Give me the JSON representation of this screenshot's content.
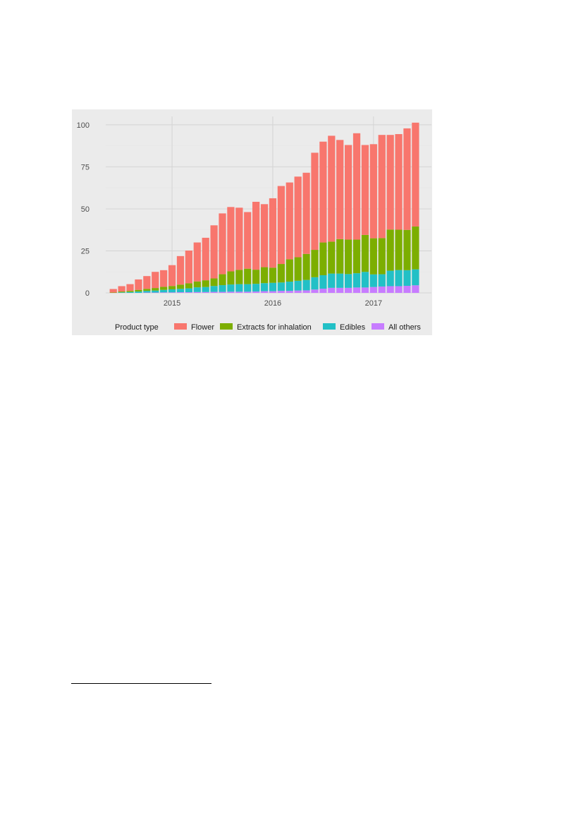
{
  "chart_data": {
    "type": "bar",
    "stacked": true,
    "title": "",
    "xlabel": "",
    "ylabel": "",
    "ylim": [
      0,
      105
    ],
    "y_ticks": [
      0,
      25,
      50,
      75,
      100
    ],
    "x_ticks": [
      {
        "label": "2015",
        "at_month": 7
      },
      {
        "label": "2016",
        "at_month": 19
      },
      {
        "label": "2017",
        "at_month": 31
      }
    ],
    "x_range_months": [
      -0.9,
      37.9
    ],
    "grid": true,
    "legend": {
      "title": "Product type",
      "position": "bottom",
      "entries": [
        "Flower",
        "Extracts for inhalation",
        "Edibles",
        "All others"
      ]
    },
    "categories": [
      "2014-07",
      "2014-08",
      "2014-09",
      "2014-10",
      "2014-11",
      "2014-12",
      "2015-01",
      "2015-02",
      "2015-03",
      "2015-04",
      "2015-05",
      "2015-06",
      "2015-07",
      "2015-08",
      "2015-09",
      "2015-10",
      "2015-11",
      "2015-12",
      "2016-01",
      "2016-02",
      "2016-03",
      "2016-04",
      "2016-05",
      "2016-06",
      "2016-07",
      "2016-08",
      "2016-09",
      "2016-10",
      "2016-11",
      "2016-12",
      "2017-01",
      "2017-02",
      "2017-03",
      "2017-04",
      "2017-05",
      "2017-06",
      "2017-07"
    ],
    "series": [
      {
        "name": "All others",
        "color": "#c77cff",
        "values": [
          0,
          0,
          0,
          0,
          0.2,
          0.2,
          0.3,
          0.3,
          0.4,
          0.4,
          0.5,
          0.5,
          0.6,
          0.6,
          0.7,
          0.7,
          0.7,
          0.8,
          1,
          1,
          1.2,
          1.2,
          1.4,
          1.5,
          2,
          2.5,
          3,
          3,
          3,
          3.2,
          3.2,
          3.5,
          3.8,
          4,
          4,
          4.2,
          4.5
        ]
      },
      {
        "name": "Edibles",
        "color": "#22c0c6",
        "values": [
          0,
          0.3,
          0.5,
          0.8,
          1,
          1.2,
          1.5,
          1.8,
          2,
          2.3,
          2.8,
          3,
          3.5,
          4,
          4.3,
          4.5,
          4.5,
          4.6,
          4.8,
          5,
          5,
          5.5,
          5.8,
          6.2,
          7.3,
          8,
          8.5,
          8.5,
          8.2,
          8.5,
          9.3,
          7.5,
          7.3,
          9.2,
          9.6,
          9.3,
          9.5
        ]
      },
      {
        "name": "Extracts for inhalation",
        "color": "#7cae00",
        "values": [
          0.2,
          0.5,
          0.7,
          1,
          1.2,
          1.5,
          1.8,
          2,
          2.5,
          3,
          3.5,
          4,
          4.5,
          6.5,
          7.8,
          8.5,
          9.2,
          8.4,
          9.5,
          9,
          11,
          13.3,
          14,
          15.5,
          16.3,
          19.5,
          19,
          20.5,
          20.5,
          20,
          22,
          21.5,
          21.5,
          24.5,
          24,
          24,
          25.5
        ]
      },
      {
        "name": "Flower",
        "color": "#f8766d",
        "values": [
          2.1,
          3.2,
          4,
          6.2,
          7.6,
          9.6,
          9.9,
          12.4,
          17,
          19.5,
          23.2,
          25.3,
          31.6,
          36.2,
          38.3,
          37,
          33.7,
          40.4,
          37.5,
          41.3,
          46.4,
          45.7,
          48,
          48.3,
          57.8,
          60,
          63,
          59,
          56.3,
          63.3,
          53.5,
          56,
          61.4,
          56.3,
          56.9,
          60.4,
          61.8
        ]
      }
    ]
  }
}
